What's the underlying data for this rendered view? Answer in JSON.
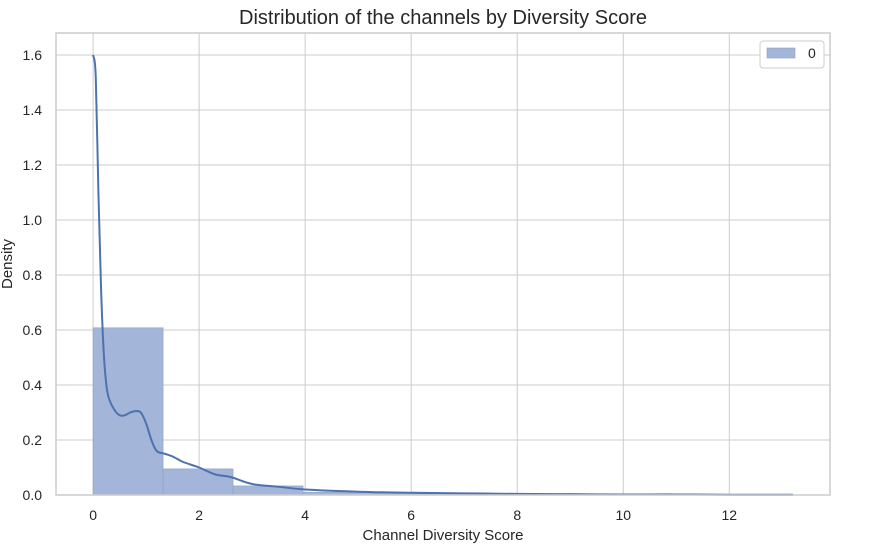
{
  "chart_data": {
    "type": "bar",
    "title": "Distribution of the channels by Diversity Score",
    "xlabel": "Channel Diversity Score",
    "ylabel": "Density",
    "xlim": [
      -0.7,
      13.9
    ],
    "ylim": [
      0,
      1.68
    ],
    "xticks": [
      0,
      2,
      4,
      6,
      8,
      10,
      12
    ],
    "xtick_labels": [
      "0",
      "2",
      "4",
      "6",
      "8",
      "10",
      "12"
    ],
    "yticks": [
      0.0,
      0.2,
      0.4,
      0.6,
      0.8,
      1.0,
      1.2,
      1.4,
      1.6
    ],
    "ytick_labels": [
      "0.0",
      "0.2",
      "0.4",
      "0.6",
      "0.8",
      "1.0",
      "1.2",
      "1.4",
      "1.6"
    ],
    "grid": true,
    "legend_position": "top-right",
    "histogram": {
      "name": "0",
      "bin_edges": [
        0,
        1.32,
        2.64,
        3.96,
        5.28,
        6.6,
        7.92,
        9.24,
        10.56,
        11.88,
        13.2
      ],
      "densities": [
        0.608,
        0.095,
        0.033,
        0.01,
        0.006,
        0.004,
        0.003,
        0.002,
        0.001,
        0.001
      ]
    },
    "kde": {
      "x": [
        0,
        0.05,
        0.1,
        0.15,
        0.2,
        0.25,
        0.3,
        0.4,
        0.5,
        0.6,
        0.7,
        0.8,
        0.9,
        1.0,
        1.1,
        1.2,
        1.35,
        1.5,
        1.7,
        2.0,
        2.3,
        2.6,
        3.0,
        3.5,
        4.0,
        5.0,
        6.0,
        7.0,
        8.0,
        9.0,
        10.0,
        11.0,
        12.0,
        13.2
      ],
      "y": [
        1.6,
        1.52,
        1.1,
        0.75,
        0.52,
        0.4,
        0.35,
        0.31,
        0.29,
        0.29,
        0.3,
        0.305,
        0.3,
        0.26,
        0.2,
        0.16,
        0.15,
        0.14,
        0.12,
        0.1,
        0.075,
        0.065,
        0.04,
        0.03,
        0.02,
        0.012,
        0.008,
        0.006,
        0.004,
        0.003,
        0.002,
        0.002,
        0.001,
        0.001
      ]
    },
    "colors": {
      "bar_fill": "#a3b5d8",
      "bar_stroke": "#8da2c8",
      "kde_line": "#4c72b0",
      "grid": "#cccccc",
      "frame": "#cccccc",
      "legend_patch": "#a3b5d8"
    }
  }
}
